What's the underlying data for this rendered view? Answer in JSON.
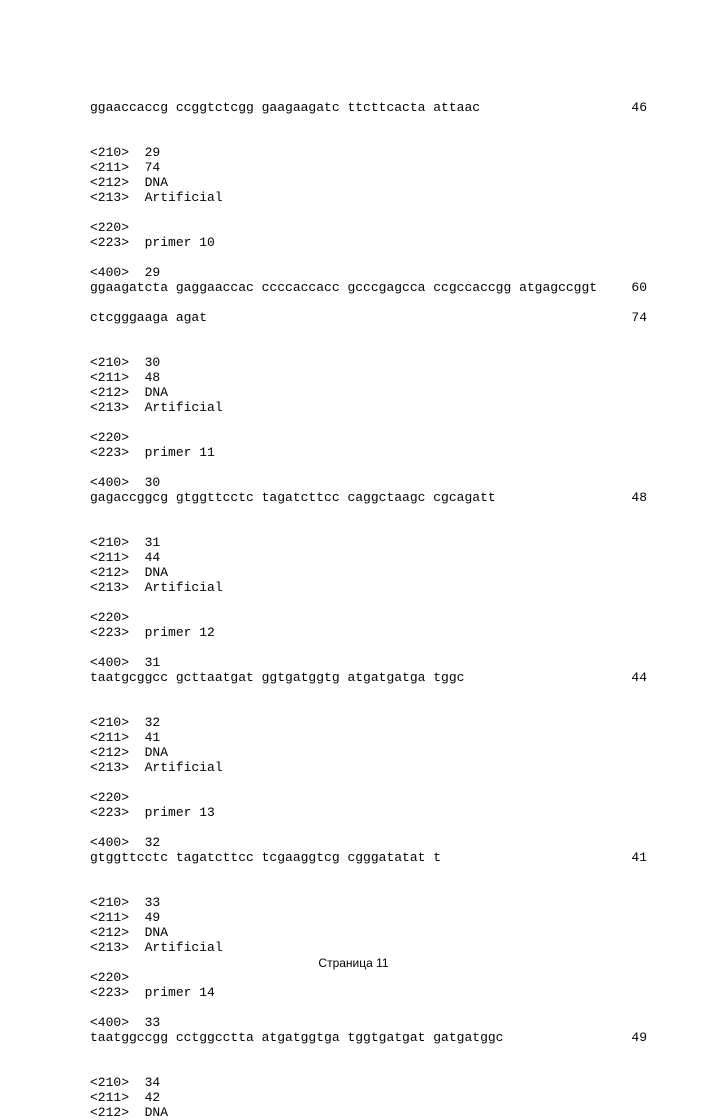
{
  "page": {
    "footer": "Страница 11",
    "fontFamily": "Courier New",
    "fontSizePt": 10,
    "backgroundColor": "#ffffff",
    "textColor": "#000000"
  },
  "header_line": {
    "seq": "ggaaccaccg ccggtctcgg gaagaagatc ttcttcacta attaac",
    "len": "46"
  },
  "entries": [
    {
      "tag210": "<210>  29",
      "tag211": "<211>  74",
      "tag212": "<212>  DNA",
      "tag213": "<213>  Artificial",
      "tag220": "<220>",
      "tag223": "<223>  primer 10",
      "tag400": "<400>  29",
      "seq_lines": [
        {
          "seq": "ggaagatcta gaggaaccac ccccaccacc gcccgagcca ccgccaccgg atgagccggt",
          "len": "60"
        },
        {
          "seq": "ctcgggaaga agat",
          "len": "74"
        }
      ]
    },
    {
      "tag210": "<210>  30",
      "tag211": "<211>  48",
      "tag212": "<212>  DNA",
      "tag213": "<213>  Artificial",
      "tag220": "<220>",
      "tag223": "<223>  primer 11",
      "tag400": "<400>  30",
      "seq_lines": [
        {
          "seq": "gagaccggcg gtggttcctc tagatcttcc caggctaagc cgcagatt",
          "len": "48"
        }
      ]
    },
    {
      "tag210": "<210>  31",
      "tag211": "<211>  44",
      "tag212": "<212>  DNA",
      "tag213": "<213>  Artificial",
      "tag220": "<220>",
      "tag223": "<223>  primer 12",
      "tag400": "<400>  31",
      "seq_lines": [
        {
          "seq": "taatgcggcc gcttaatgat ggtgatggtg atgatgatga tggc",
          "len": "44"
        }
      ]
    },
    {
      "tag210": "<210>  32",
      "tag211": "<211>  41",
      "tag212": "<212>  DNA",
      "tag213": "<213>  Artificial",
      "tag220": "<220>",
      "tag223": "<223>  primer 13",
      "tag400": "<400>  32",
      "seq_lines": [
        {
          "seq": "gtggttcctc tagatcttcc tcgaaggtcg cgggatatat t",
          "len": "41"
        }
      ]
    },
    {
      "tag210": "<210>  33",
      "tag211": "<211>  49",
      "tag212": "<212>  DNA",
      "tag213": "<213>  Artificial",
      "tag220": "<220>",
      "tag223": "<223>  primer 14",
      "tag400": "<400>  33",
      "seq_lines": [
        {
          "seq": "taatggccgg cctggcctta atgatggtga tggtgatgat gatgatggc",
          "len": "49"
        }
      ]
    }
  ],
  "trailing": {
    "tag210": "<210>  34",
    "tag211": "<211>  42",
    "tag212": "<212>  DNA"
  }
}
